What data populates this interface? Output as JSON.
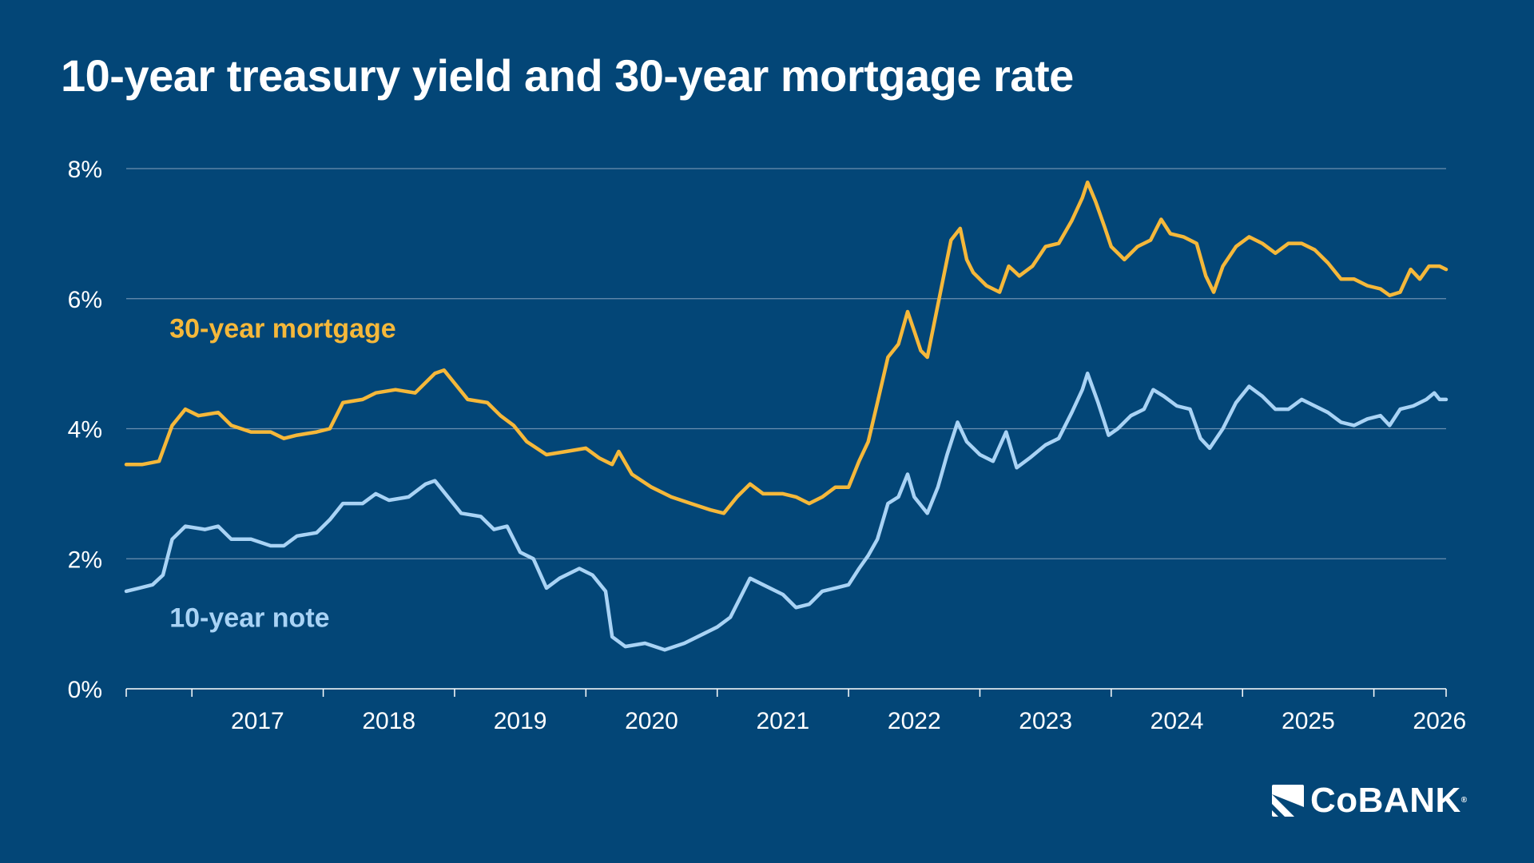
{
  "chart_data": {
    "type": "line",
    "title": "10-year treasury yield and 30-year mortgage rate",
    "xlabel": "",
    "ylabel": "",
    "x_ticks": [
      "2017",
      "2018",
      "2019",
      "2020",
      "2021",
      "2022",
      "2023",
      "2024",
      "2025",
      "2026"
    ],
    "y_ticks": [
      "0%",
      "2%",
      "4%",
      "6%",
      "8%"
    ],
    "xlim": [
      2016.5,
      2026.55
    ],
    "ylim": [
      0,
      8
    ],
    "grid": "horizontal",
    "legend": "inline labels",
    "series": [
      {
        "name": "30-year mortgage",
        "color": "#F5B83A",
        "label_color": "#F5B83A",
        "points": [
          [
            2016.5,
            3.45
          ],
          [
            2016.62,
            3.45
          ],
          [
            2016.75,
            3.5
          ],
          [
            2016.85,
            4.05
          ],
          [
            2016.95,
            4.3
          ],
          [
            2017.05,
            4.2
          ],
          [
            2017.2,
            4.25
          ],
          [
            2017.3,
            4.05
          ],
          [
            2017.45,
            3.95
          ],
          [
            2017.6,
            3.95
          ],
          [
            2017.7,
            3.85
          ],
          [
            2017.8,
            3.9
          ],
          [
            2017.95,
            3.95
          ],
          [
            2018.05,
            4.0
          ],
          [
            2018.15,
            4.4
          ],
          [
            2018.3,
            4.45
          ],
          [
            2018.4,
            4.55
          ],
          [
            2018.55,
            4.6
          ],
          [
            2018.7,
            4.55
          ],
          [
            2018.85,
            4.85
          ],
          [
            2018.92,
            4.9
          ],
          [
            2019.0,
            4.7
          ],
          [
            2019.1,
            4.45
          ],
          [
            2019.25,
            4.4
          ],
          [
            2019.35,
            4.2
          ],
          [
            2019.45,
            4.05
          ],
          [
            2019.55,
            3.8
          ],
          [
            2019.7,
            3.6
          ],
          [
            2019.85,
            3.65
          ],
          [
            2020.0,
            3.7
          ],
          [
            2020.1,
            3.55
          ],
          [
            2020.2,
            3.45
          ],
          [
            2020.25,
            3.65
          ],
          [
            2020.35,
            3.3
          ],
          [
            2020.5,
            3.1
          ],
          [
            2020.65,
            2.95
          ],
          [
            2020.8,
            2.85
          ],
          [
            2020.95,
            2.75
          ],
          [
            2021.05,
            2.7
          ],
          [
            2021.15,
            2.95
          ],
          [
            2021.25,
            3.15
          ],
          [
            2021.35,
            3.0
          ],
          [
            2021.5,
            3.0
          ],
          [
            2021.6,
            2.95
          ],
          [
            2021.7,
            2.85
          ],
          [
            2021.8,
            2.95
          ],
          [
            2021.9,
            3.1
          ],
          [
            2022.0,
            3.1
          ],
          [
            2022.08,
            3.5
          ],
          [
            2022.15,
            3.8
          ],
          [
            2022.22,
            4.4
          ],
          [
            2022.3,
            5.1
          ],
          [
            2022.38,
            5.3
          ],
          [
            2022.45,
            5.8
          ],
          [
            2022.5,
            5.5
          ],
          [
            2022.55,
            5.2
          ],
          [
            2022.6,
            5.1
          ],
          [
            2022.65,
            5.6
          ],
          [
            2022.72,
            6.3
          ],
          [
            2022.78,
            6.9
          ],
          [
            2022.85,
            7.08
          ],
          [
            2022.9,
            6.6
          ],
          [
            2022.95,
            6.4
          ],
          [
            2023.05,
            6.2
          ],
          [
            2023.15,
            6.1
          ],
          [
            2023.22,
            6.5
          ],
          [
            2023.3,
            6.35
          ],
          [
            2023.4,
            6.5
          ],
          [
            2023.5,
            6.8
          ],
          [
            2023.6,
            6.85
          ],
          [
            2023.7,
            7.2
          ],
          [
            2023.78,
            7.55
          ],
          [
            2023.82,
            7.79
          ],
          [
            2023.88,
            7.5
          ],
          [
            2023.95,
            7.1
          ],
          [
            2024.0,
            6.8
          ],
          [
            2024.1,
            6.6
          ],
          [
            2024.2,
            6.8
          ],
          [
            2024.3,
            6.9
          ],
          [
            2024.38,
            7.22
          ],
          [
            2024.45,
            7.0
          ],
          [
            2024.55,
            6.95
          ],
          [
            2024.65,
            6.85
          ],
          [
            2024.72,
            6.35
          ],
          [
            2024.78,
            6.1
          ],
          [
            2024.85,
            6.5
          ],
          [
            2024.95,
            6.8
          ],
          [
            2025.05,
            6.95
          ],
          [
            2025.15,
            6.85
          ],
          [
            2025.25,
            6.7
          ],
          [
            2025.35,
            6.85
          ],
          [
            2025.45,
            6.85
          ],
          [
            2025.55,
            6.75
          ],
          [
            2025.65,
            6.55
          ],
          [
            2025.75,
            6.3
          ],
          [
            2025.85,
            6.3
          ],
          [
            2025.95,
            6.2
          ],
          [
            2026.05,
            6.15
          ],
          [
            2026.12,
            6.05
          ],
          [
            2026.2,
            6.1
          ],
          [
            2026.28,
            6.45
          ],
          [
            2026.35,
            6.3
          ],
          [
            2026.42,
            6.5
          ],
          [
            2026.5,
            6.5
          ],
          [
            2026.55,
            6.45
          ]
        ]
      },
      {
        "name": "10-year note",
        "color": "#A9D3F5",
        "label_color": "#A9D3F5",
        "points": [
          [
            2016.5,
            1.5
          ],
          [
            2016.6,
            1.55
          ],
          [
            2016.7,
            1.6
          ],
          [
            2016.78,
            1.75
          ],
          [
            2016.85,
            2.3
          ],
          [
            2016.95,
            2.5
          ],
          [
            2017.1,
            2.45
          ],
          [
            2017.2,
            2.5
          ],
          [
            2017.3,
            2.3
          ],
          [
            2017.45,
            2.3
          ],
          [
            2017.6,
            2.2
          ],
          [
            2017.7,
            2.2
          ],
          [
            2017.8,
            2.35
          ],
          [
            2017.95,
            2.4
          ],
          [
            2018.05,
            2.6
          ],
          [
            2018.15,
            2.85
          ],
          [
            2018.3,
            2.85
          ],
          [
            2018.4,
            3.0
          ],
          [
            2018.5,
            2.9
          ],
          [
            2018.65,
            2.95
          ],
          [
            2018.78,
            3.15
          ],
          [
            2018.85,
            3.2
          ],
          [
            2018.95,
            2.95
          ],
          [
            2019.05,
            2.7
          ],
          [
            2019.2,
            2.65
          ],
          [
            2019.3,
            2.45
          ],
          [
            2019.4,
            2.5
          ],
          [
            2019.5,
            2.1
          ],
          [
            2019.6,
            2.0
          ],
          [
            2019.7,
            1.55
          ],
          [
            2019.8,
            1.7
          ],
          [
            2019.95,
            1.85
          ],
          [
            2020.05,
            1.75
          ],
          [
            2020.15,
            1.5
          ],
          [
            2020.2,
            0.8
          ],
          [
            2020.3,
            0.65
          ],
          [
            2020.45,
            0.7
          ],
          [
            2020.6,
            0.6
          ],
          [
            2020.75,
            0.7
          ],
          [
            2020.9,
            0.85
          ],
          [
            2021.0,
            0.95
          ],
          [
            2021.1,
            1.1
          ],
          [
            2021.2,
            1.5
          ],
          [
            2021.25,
            1.7
          ],
          [
            2021.35,
            1.6
          ],
          [
            2021.5,
            1.45
          ],
          [
            2021.6,
            1.25
          ],
          [
            2021.7,
            1.3
          ],
          [
            2021.8,
            1.5
          ],
          [
            2021.9,
            1.55
          ],
          [
            2022.0,
            1.6
          ],
          [
            2022.08,
            1.85
          ],
          [
            2022.15,
            2.05
          ],
          [
            2022.22,
            2.3
          ],
          [
            2022.3,
            2.85
          ],
          [
            2022.38,
            2.95
          ],
          [
            2022.45,
            3.3
          ],
          [
            2022.5,
            2.95
          ],
          [
            2022.6,
            2.7
          ],
          [
            2022.68,
            3.1
          ],
          [
            2022.75,
            3.6
          ],
          [
            2022.83,
            4.1
          ],
          [
            2022.9,
            3.8
          ],
          [
            2023.0,
            3.6
          ],
          [
            2023.1,
            3.5
          ],
          [
            2023.2,
            3.95
          ],
          [
            2023.28,
            3.4
          ],
          [
            2023.38,
            3.55
          ],
          [
            2023.5,
            3.75
          ],
          [
            2023.6,
            3.85
          ],
          [
            2023.7,
            4.25
          ],
          [
            2023.78,
            4.6
          ],
          [
            2023.82,
            4.85
          ],
          [
            2023.9,
            4.4
          ],
          [
            2023.98,
            3.9
          ],
          [
            2024.05,
            4.0
          ],
          [
            2024.15,
            4.2
          ],
          [
            2024.25,
            4.3
          ],
          [
            2024.32,
            4.6
          ],
          [
            2024.4,
            4.5
          ],
          [
            2024.5,
            4.35
          ],
          [
            2024.6,
            4.3
          ],
          [
            2024.68,
            3.85
          ],
          [
            2024.75,
            3.7
          ],
          [
            2024.85,
            4.0
          ],
          [
            2024.95,
            4.4
          ],
          [
            2025.05,
            4.65
          ],
          [
            2025.15,
            4.5
          ],
          [
            2025.25,
            4.3
          ],
          [
            2025.35,
            4.3
          ],
          [
            2025.45,
            4.45
          ],
          [
            2025.55,
            4.35
          ],
          [
            2025.65,
            4.25
          ],
          [
            2025.75,
            4.1
          ],
          [
            2025.85,
            4.05
          ],
          [
            2025.95,
            4.15
          ],
          [
            2026.05,
            4.2
          ],
          [
            2026.12,
            4.05
          ],
          [
            2026.2,
            4.3
          ],
          [
            2026.3,
            4.35
          ],
          [
            2026.4,
            4.45
          ],
          [
            2026.46,
            4.55
          ],
          [
            2026.5,
            4.45
          ],
          [
            2026.55,
            4.45
          ]
        ]
      }
    ]
  },
  "branding": {
    "logo_text": "CoBANK",
    "logo_mark": "®"
  }
}
